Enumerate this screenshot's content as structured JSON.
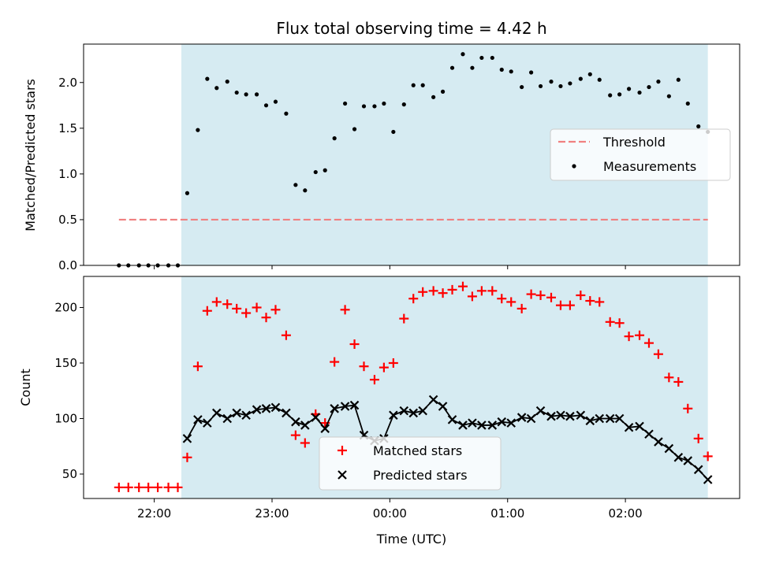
{
  "chart_data": [
    {
      "type": "scatter",
      "title": "Flux total observing time = 4.42 h",
      "xlabel": "",
      "ylabel": "Matched/Predicted stars",
      "xlim": [
        -2.6,
        2.97
      ],
      "ylim": [
        0,
        2.42
      ],
      "x_tick_hours": [
        -2,
        -1,
        0,
        1,
        2
      ],
      "yticks": [
        0.0,
        0.5,
        1.0,
        1.5,
        2.0
      ],
      "ytick_labels": [
        "0.0",
        "0.5",
        "1.0",
        "1.5",
        "2.0"
      ],
      "observing_window": [
        -1.77,
        2.7
      ],
      "threshold": {
        "value": 0.5,
        "x": [
          -2.3,
          2.7
        ]
      },
      "legend": {
        "position": "center-right",
        "entries": [
          "Threshold",
          "Measurements"
        ]
      },
      "colors": {
        "threshold": "#f08080",
        "measurements": "#000000",
        "shade": "#add8e6"
      },
      "series": [
        {
          "name": "Measurements",
          "x": [
            -2.3,
            -2.22,
            -2.13,
            -2.05,
            -1.97,
            -1.88,
            -1.8,
            -1.72,
            -1.63,
            -1.55,
            -1.47,
            -1.38,
            -1.3,
            -1.22,
            -1.13,
            -1.05,
            -0.97,
            -0.88,
            -0.8,
            -0.72,
            -0.63,
            -0.55,
            -0.47,
            -0.38,
            -0.3,
            -0.22,
            -0.13,
            -0.05,
            0.03,
            0.12,
            0.2,
            0.28,
            0.37,
            0.45,
            0.53,
            0.62,
            0.7,
            0.78,
            0.87,
            0.95,
            1.03,
            1.12,
            1.2,
            1.28,
            1.37,
            1.45,
            1.53,
            1.62,
            1.7,
            1.78,
            1.87,
            1.95,
            2.03,
            2.12,
            2.2,
            2.28,
            2.37,
            2.45,
            2.53,
            2.62,
            2.7
          ],
          "y": [
            0.0,
            0.0,
            0.0,
            0.0,
            0.0,
            0.0,
            0.0,
            0.79,
            1.48,
            2.04,
            1.94,
            2.01,
            1.89,
            1.87,
            1.87,
            1.75,
            1.79,
            1.66,
            0.88,
            0.82,
            1.02,
            1.04,
            1.39,
            1.77,
            1.49,
            1.74,
            1.74,
            1.77,
            1.46,
            1.76,
            1.97,
            1.97,
            1.84,
            1.9,
            2.16,
            2.31,
            2.16,
            2.27,
            2.27,
            2.14,
            2.12,
            1.95,
            2.11,
            1.96,
            2.01,
            1.96,
            1.99,
            2.04,
            2.09,
            2.03,
            1.86,
            1.87,
            1.93,
            1.89,
            1.95,
            2.01,
            1.85,
            2.03,
            1.77,
            1.52,
            1.46
          ]
        }
      ]
    },
    {
      "type": "scatter",
      "title": "",
      "xlabel": "Time (UTC)",
      "ylabel": "Count",
      "xlim": [
        -2.6,
        2.97
      ],
      "ylim": [
        28,
        228
      ],
      "x_ticks": [
        {
          "hour": -2,
          "label": "22:00"
        },
        {
          "hour": -1,
          "label": "23:00"
        },
        {
          "hour": 0,
          "label": "00:00"
        },
        {
          "hour": 1,
          "label": "01:00"
        },
        {
          "hour": 2,
          "label": "02:00"
        }
      ],
      "yticks": [
        50,
        100,
        150,
        200
      ],
      "ytick_labels": [
        "50",
        "100",
        "150",
        "200"
      ],
      "observing_window": [
        -1.77,
        2.7
      ],
      "legend": {
        "position": "lower-center",
        "entries": [
          "Matched stars",
          "Predicted stars"
        ]
      },
      "colors": {
        "matched": "#ff0000",
        "predicted": "#000000",
        "shade": "#add8e6"
      },
      "series": [
        {
          "name": "Matched stars",
          "x": [
            -2.3,
            -2.22,
            -2.13,
            -2.05,
            -1.97,
            -1.88,
            -1.8,
            -1.72,
            -1.63,
            -1.55,
            -1.47,
            -1.38,
            -1.3,
            -1.22,
            -1.13,
            -1.05,
            -0.97,
            -0.88,
            -0.8,
            -0.72,
            -0.63,
            -0.55,
            -0.47,
            -0.38,
            -0.3,
            -0.22,
            -0.13,
            -0.05,
            0.03,
            0.12,
            0.2,
            0.28,
            0.37,
            0.45,
            0.53,
            0.62,
            0.7,
            0.78,
            0.87,
            0.95,
            1.03,
            1.12,
            1.2,
            1.28,
            1.37,
            1.45,
            1.53,
            1.62,
            1.7,
            1.78,
            1.87,
            1.95,
            2.03,
            2.12,
            2.2,
            2.28,
            2.37,
            2.45,
            2.53,
            2.62,
            2.7
          ],
          "y": [
            38,
            38,
            38,
            38,
            38,
            38,
            38,
            65,
            147,
            197,
            205,
            203,
            199,
            195,
            200,
            191,
            198,
            175,
            85,
            78,
            104,
            96,
            151,
            198,
            167,
            147,
            135,
            146,
            150,
            190,
            208,
            214,
            215,
            213,
            216,
            219,
            210,
            215,
            215,
            208,
            205,
            199,
            212,
            211,
            209,
            202,
            202,
            211,
            206,
            205,
            187,
            186,
            174,
            175,
            168,
            158,
            137,
            133,
            109,
            82,
            66
          ]
        },
        {
          "name": "Predicted stars",
          "x": [
            -1.72,
            -1.63,
            -1.55,
            -1.47,
            -1.38,
            -1.3,
            -1.22,
            -1.13,
            -1.05,
            -0.97,
            -0.88,
            -0.8,
            -0.72,
            -0.63,
            -0.55,
            -0.47,
            -0.38,
            -0.3,
            -0.22,
            -0.13,
            -0.05,
            0.03,
            0.12,
            0.2,
            0.28,
            0.37,
            0.45,
            0.53,
            0.62,
            0.7,
            0.78,
            0.87,
            0.95,
            1.03,
            1.12,
            1.2,
            1.28,
            1.37,
            1.45,
            1.53,
            1.62,
            1.7,
            1.78,
            1.87,
            1.95,
            2.03,
            2.12,
            2.2,
            2.28,
            2.37,
            2.45,
            2.53,
            2.62,
            2.7
          ],
          "y": [
            82,
            99,
            96,
            105,
            100,
            105,
            103,
            108,
            109,
            110,
            105,
            97,
            94,
            101,
            91,
            109,
            111,
            112,
            85,
            80,
            82,
            103,
            107,
            105,
            107,
            117,
            111,
            99,
            94,
            96,
            94,
            94,
            97,
            96,
            101,
            100,
            107,
            102,
            103,
            102,
            103,
            98,
            100,
            100,
            100,
            92,
            93,
            86,
            79,
            73,
            65,
            62,
            54,
            45
          ]
        }
      ]
    }
  ]
}
